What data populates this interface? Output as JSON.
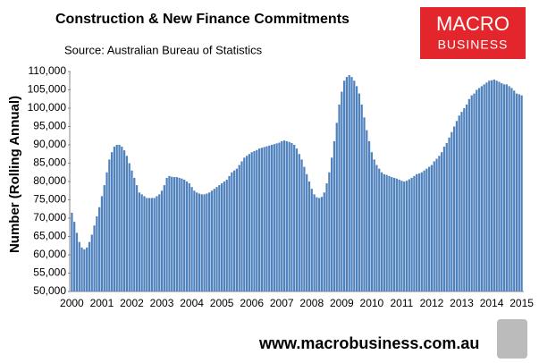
{
  "chart_data": {
    "type": "bar",
    "title": "Construction & New Finance Commitments",
    "subtitle": "Source: Australian  Bureau of Statistics",
    "y_label": "Number (Rolling Annual)",
    "logo": [
      "MACRO",
      "BUSINESS"
    ],
    "website": "www.macrobusiness.com.au",
    "color": "#4f81bd",
    "grid": false,
    "ylim": [
      50000,
      110000
    ],
    "yticks": [
      {
        "value": 50000,
        "label": "50,000"
      },
      {
        "value": 55000,
        "label": "55,000"
      },
      {
        "value": 60000,
        "label": "60,000"
      },
      {
        "value": 65000,
        "label": "65,000"
      },
      {
        "value": 70000,
        "label": "70,000"
      },
      {
        "value": 75000,
        "label": "75,000"
      },
      {
        "value": 80000,
        "label": "80,000"
      },
      {
        "value": 85000,
        "label": "85,000"
      },
      {
        "value": 90000,
        "label": "90,000"
      },
      {
        "value": 95000,
        "label": "95,000"
      },
      {
        "value": 100000,
        "label": "100,000"
      },
      {
        "value": 105000,
        "label": "105,000"
      },
      {
        "value": 110000,
        "label": "110,000"
      }
    ],
    "categories": [
      "2000",
      null,
      null,
      null,
      null,
      null,
      null,
      null,
      null,
      null,
      null,
      null,
      "2001",
      null,
      null,
      null,
      null,
      null,
      null,
      null,
      null,
      null,
      null,
      null,
      "2002",
      null,
      null,
      null,
      null,
      null,
      null,
      null,
      null,
      null,
      null,
      null,
      "2003",
      null,
      null,
      null,
      null,
      null,
      null,
      null,
      null,
      null,
      null,
      null,
      "2004",
      null,
      null,
      null,
      null,
      null,
      null,
      null,
      null,
      null,
      null,
      null,
      "2005",
      null,
      null,
      null,
      null,
      null,
      null,
      null,
      null,
      null,
      null,
      null,
      "2006",
      null,
      null,
      null,
      null,
      null,
      null,
      null,
      null,
      null,
      null,
      null,
      "2007",
      null,
      null,
      null,
      null,
      null,
      null,
      null,
      null,
      null,
      null,
      null,
      "2008",
      null,
      null,
      null,
      null,
      null,
      null,
      null,
      null,
      null,
      null,
      null,
      "2009",
      null,
      null,
      null,
      null,
      null,
      null,
      null,
      null,
      null,
      null,
      null,
      "2010",
      null,
      null,
      null,
      null,
      null,
      null,
      null,
      null,
      null,
      null,
      null,
      "2011",
      null,
      null,
      null,
      null,
      null,
      null,
      null,
      null,
      null,
      null,
      null,
      "2012",
      null,
      null,
      null,
      null,
      null,
      null,
      null,
      null,
      null,
      null,
      null,
      "2013",
      null,
      null,
      null,
      null,
      null,
      null,
      null,
      null,
      null,
      null,
      null,
      "2014",
      null,
      null,
      null,
      null,
      null,
      null,
      null,
      null,
      null,
      null,
      null,
      "2015"
    ],
    "values": [
      71500,
      69000,
      66000,
      63500,
      62000,
      61500,
      62000,
      63500,
      65500,
      68000,
      70500,
      73000,
      76000,
      79000,
      82500,
      86000,
      88000,
      89500,
      90000,
      90000,
      89500,
      88500,
      87000,
      85000,
      83000,
      81000,
      79000,
      77000,
      76500,
      76000,
      75500,
      75500,
      75500,
      75500,
      76000,
      76500,
      77500,
      79000,
      81000,
      81500,
      81300,
      81200,
      81200,
      81000,
      80800,
      80500,
      80000,
      79500,
      78500,
      77500,
      77000,
      76700,
      76500,
      76500,
      76700,
      77000,
      77500,
      78000,
      78500,
      79000,
      79500,
      80000,
      80500,
      81500,
      82500,
      83000,
      83500,
      84500,
      85500,
      86500,
      87000,
      87500,
      88000,
      88300,
      88600,
      89000,
      89200,
      89400,
      89600,
      89800,
      90000,
      90200,
      90400,
      90600,
      91000,
      91200,
      91000,
      90800,
      90500,
      90000,
      89000,
      87500,
      86000,
      84000,
      82000,
      80000,
      78000,
      76500,
      75700,
      75500,
      75800,
      77000,
      79500,
      82500,
      86500,
      91000,
      96000,
      101000,
      104500,
      107500,
      108500,
      109000,
      108500,
      107500,
      106000,
      104000,
      101000,
      97500,
      94000,
      91000,
      88000,
      86000,
      84500,
      83500,
      82500,
      82000,
      81800,
      81500,
      81200,
      81000,
      80800,
      80500,
      80200,
      80000,
      80200,
      80600,
      81000,
      81500,
      82000,
      82200,
      82500,
      83000,
      83500,
      84000,
      84500,
      85500,
      86200,
      87000,
      88000,
      89500,
      90500,
      92000,
      93500,
      95000,
      96500,
      98000,
      99000,
      100000,
      101000,
      102500,
      103500,
      104000,
      105000,
      105500,
      106000,
      106500,
      107000,
      107500,
      107600,
      107800,
      107500,
      107200,
      106800,
      106500,
      106500,
      106000,
      105500,
      104800,
      104000,
      103800,
      103500
    ]
  }
}
